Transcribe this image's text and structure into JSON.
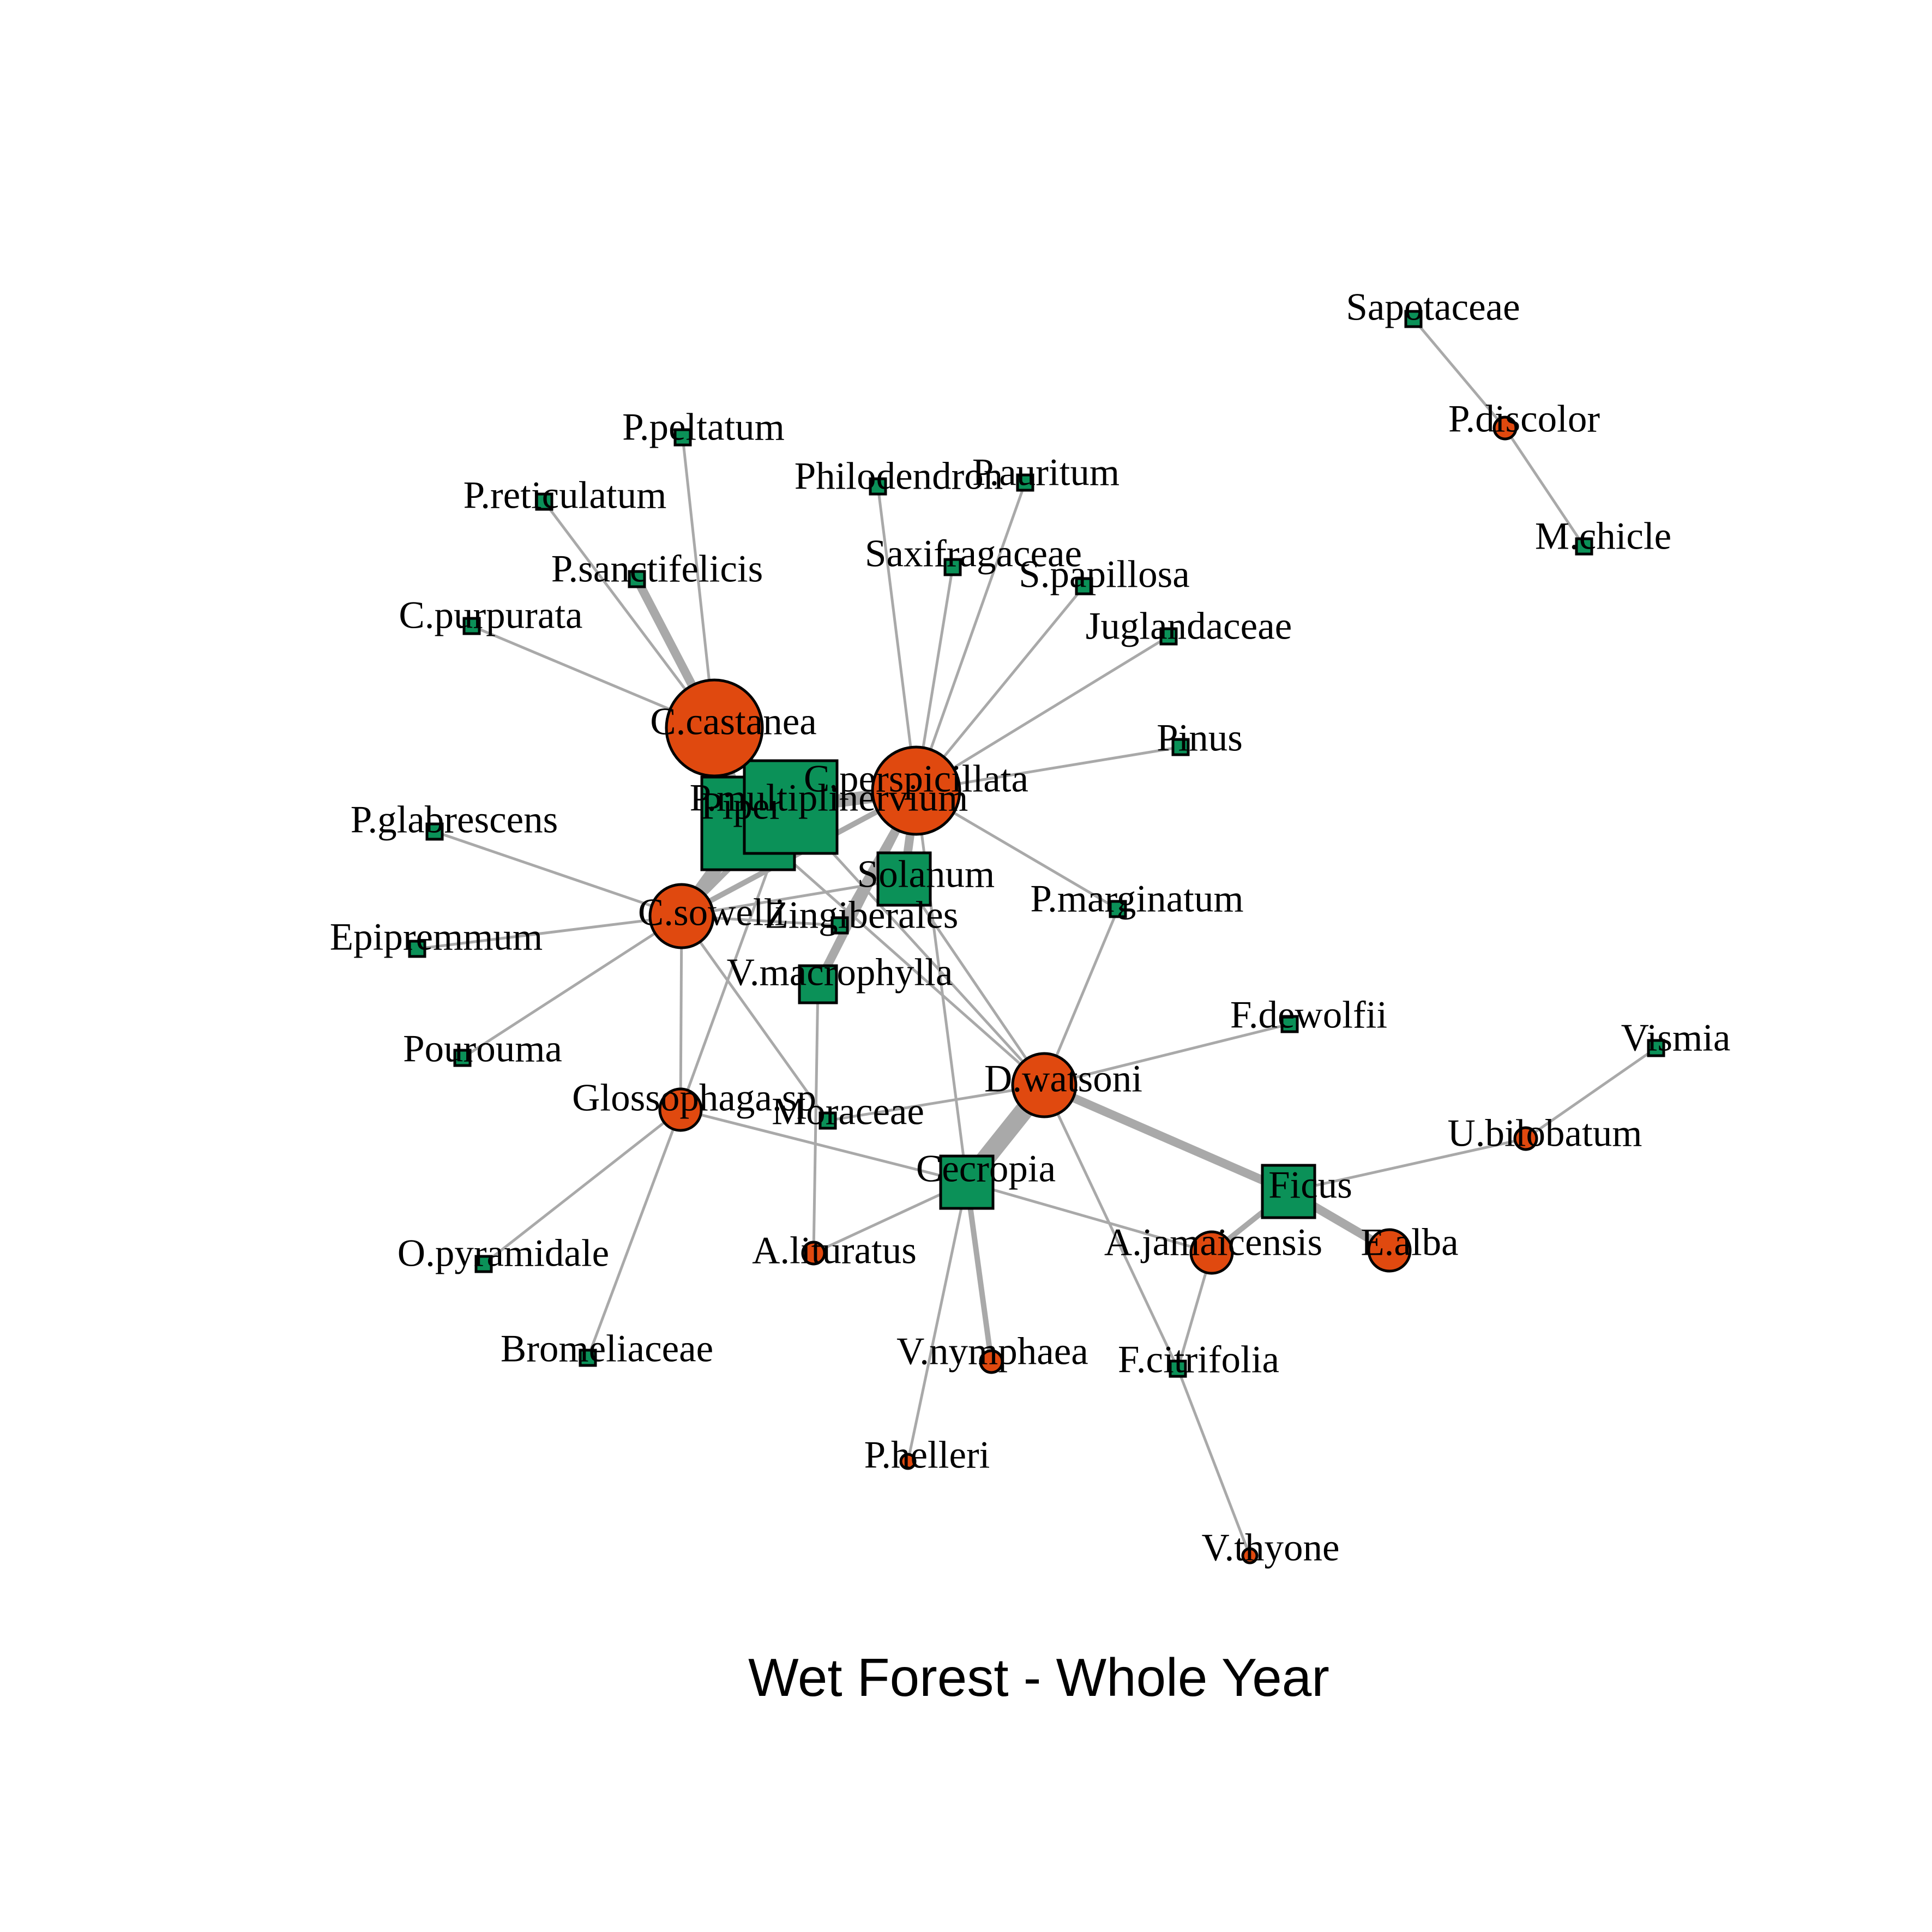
{
  "title": "Wet Forest - Whole Year",
  "colors": {
    "bat": "#e0490f",
    "plant": "#0b9158",
    "edge": "#a9a9a9",
    "outline": "#000000"
  },
  "nodes": [
    {
      "id": "C.castanea",
      "type": "bat",
      "size": "xl"
    },
    {
      "id": "C.perspicillata",
      "type": "bat",
      "size": "l"
    },
    {
      "id": "C.sowelli",
      "type": "bat",
      "size": "m"
    },
    {
      "id": "D.watsoni",
      "type": "bat",
      "size": "m"
    },
    {
      "id": "Glossophaga.sp",
      "type": "bat",
      "size": "s"
    },
    {
      "id": "A.lituratus",
      "type": "bat",
      "size": "xs"
    },
    {
      "id": "A.jamaicensis",
      "type": "bat",
      "size": "s"
    },
    {
      "id": "E.alba",
      "type": "bat",
      "size": "s"
    },
    {
      "id": "V.nymphaea",
      "type": "bat",
      "size": "xs"
    },
    {
      "id": "P.helleri",
      "type": "bat",
      "size": "xxs"
    },
    {
      "id": "V.thyone",
      "type": "bat",
      "size": "xxs"
    },
    {
      "id": "U.bilobatum",
      "type": "bat",
      "size": "xs"
    },
    {
      "id": "P.discolor",
      "type": "bat",
      "size": "xs"
    },
    {
      "id": "Piper",
      "type": "plant",
      "size": "xl"
    },
    {
      "id": "P.multiplinervium",
      "type": "plant",
      "size": "xl"
    },
    {
      "id": "Solanum",
      "type": "plant",
      "size": "m"
    },
    {
      "id": "Zingiberales",
      "type": "plant",
      "size": "xs"
    },
    {
      "id": "V.macrophylla",
      "type": "plant",
      "size": "s"
    },
    {
      "id": "Cecropia",
      "type": "plant",
      "size": "m"
    },
    {
      "id": "Ficus",
      "type": "plant",
      "size": "m"
    },
    {
      "id": "F.citrifolia",
      "type": "plant",
      "size": "xs"
    },
    {
      "id": "Moraceae",
      "type": "plant",
      "size": "xs"
    },
    {
      "id": "P.peltatum",
      "type": "plant",
      "size": "xs"
    },
    {
      "id": "P.reticulatum",
      "type": "plant",
      "size": "xs"
    },
    {
      "id": "P.sanctifelicis",
      "type": "plant",
      "size": "xs"
    },
    {
      "id": "C.purpurata",
      "type": "plant",
      "size": "xs"
    },
    {
      "id": "P.glabrescens",
      "type": "plant",
      "size": "xs"
    },
    {
      "id": "Epipremmum",
      "type": "plant",
      "size": "xs"
    },
    {
      "id": "Pourouma",
      "type": "plant",
      "size": "xs"
    },
    {
      "id": "O.pyramidale",
      "type": "plant",
      "size": "xs"
    },
    {
      "id": "Bromeliaceae",
      "type": "plant",
      "size": "xs"
    },
    {
      "id": "Philodendron",
      "type": "plant",
      "size": "xs"
    },
    {
      "id": "P.auritum",
      "type": "plant",
      "size": "xs"
    },
    {
      "id": "Saxifragaceae",
      "type": "plant",
      "size": "xs"
    },
    {
      "id": "S.papillosa",
      "type": "plant",
      "size": "xs"
    },
    {
      "id": "Juglandaceae",
      "type": "plant",
      "size": "xs"
    },
    {
      "id": "Pinus",
      "type": "plant",
      "size": "xs"
    },
    {
      "id": "P.marginatum",
      "type": "plant",
      "size": "xs"
    },
    {
      "id": "F.dewolfii",
      "type": "plant",
      "size": "xs"
    },
    {
      "id": "Vismia",
      "type": "plant",
      "size": "xs"
    },
    {
      "id": "Sapotaceae",
      "type": "plant",
      "size": "xs"
    },
    {
      "id": "M.chicle",
      "type": "plant",
      "size": "xs"
    }
  ],
  "edges": [
    {
      "source": "C.castanea",
      "target": "P.peltatum",
      "weight": 1
    },
    {
      "source": "C.castanea",
      "target": "P.reticulatum",
      "weight": 1
    },
    {
      "source": "C.castanea",
      "target": "P.sanctifelicis",
      "weight": 3
    },
    {
      "source": "C.castanea",
      "target": "C.purpurata",
      "weight": 1
    },
    {
      "source": "C.castanea",
      "target": "Piper",
      "weight": 3
    },
    {
      "source": "C.castanea",
      "target": "P.multiplinervium",
      "weight": 4
    },
    {
      "source": "C.perspicillata",
      "target": "P.multiplinervium",
      "weight": 4
    },
    {
      "source": "C.perspicillata",
      "target": "Philodendron",
      "weight": 1
    },
    {
      "source": "C.perspicillata",
      "target": "P.auritum",
      "weight": 1
    },
    {
      "source": "C.perspicillata",
      "target": "Saxifragaceae",
      "weight": 1
    },
    {
      "source": "C.perspicillata",
      "target": "S.papillosa",
      "weight": 1
    },
    {
      "source": "C.perspicillata",
      "target": "Juglandaceae",
      "weight": 1
    },
    {
      "source": "C.perspicillata",
      "target": "Pinus",
      "weight": 1
    },
    {
      "source": "C.perspicillata",
      "target": "P.marginatum",
      "weight": 1
    },
    {
      "source": "C.perspicillata",
      "target": "Solanum",
      "weight": 3
    },
    {
      "source": "C.perspicillata",
      "target": "Zingiberales",
      "weight": 2
    },
    {
      "source": "C.perspicillata",
      "target": "V.macrophylla",
      "weight": 3
    },
    {
      "source": "C.perspicillata",
      "target": "Cecropia",
      "weight": 1
    },
    {
      "source": "C.perspicillata",
      "target": "C.sowelli",
      "weight": 2
    },
    {
      "source": "C.sowelli",
      "target": "Piper",
      "weight": 4
    },
    {
      "source": "C.sowelli",
      "target": "P.multiplinervium",
      "weight": 2
    },
    {
      "source": "C.sowelli",
      "target": "P.glabrescens",
      "weight": 1
    },
    {
      "source": "C.sowelli",
      "target": "Epipremmum",
      "weight": 1
    },
    {
      "source": "C.sowelli",
      "target": "Pourouma",
      "weight": 1
    },
    {
      "source": "C.sowelli",
      "target": "Solanum",
      "weight": 1
    },
    {
      "source": "C.sowelli",
      "target": "Zingiberales",
      "weight": 1
    },
    {
      "source": "C.sowelli",
      "target": "Moraceae",
      "weight": 1
    },
    {
      "source": "C.sowelli",
      "target": "Glossophaga.sp",
      "weight": 1
    },
    {
      "source": "D.watsoni",
      "target": "Cecropia",
      "weight": 5
    },
    {
      "source": "D.watsoni",
      "target": "Ficus",
      "weight": 3
    },
    {
      "source": "D.watsoni",
      "target": "F.dewolfii",
      "weight": 1
    },
    {
      "source": "D.watsoni",
      "target": "P.marginatum",
      "weight": 1
    },
    {
      "source": "D.watsoni",
      "target": "Moraceae",
      "weight": 1
    },
    {
      "source": "D.watsoni",
      "target": "Solanum",
      "weight": 1
    },
    {
      "source": "D.watsoni",
      "target": "P.multiplinervium",
      "weight": 1
    },
    {
      "source": "D.watsoni",
      "target": "Piper",
      "weight": 1
    },
    {
      "source": "D.watsoni",
      "target": "F.citrifolia",
      "weight": 1
    },
    {
      "source": "Glossophaga.sp",
      "target": "O.pyramidale",
      "weight": 1
    },
    {
      "source": "Glossophaga.sp",
      "target": "Bromeliaceae",
      "weight": 1
    },
    {
      "source": "Glossophaga.sp",
      "target": "Cecropia",
      "weight": 1
    },
    {
      "source": "Glossophaga.sp",
      "target": "P.multiplinervium",
      "weight": 1
    },
    {
      "source": "A.lituratus",
      "target": "Cecropia",
      "weight": 1
    },
    {
      "source": "A.lituratus",
      "target": "V.macrophylla",
      "weight": 1
    },
    {
      "source": "A.jamaicensis",
      "target": "Ficus",
      "weight": 2
    },
    {
      "source": "A.jamaicensis",
      "target": "Cecropia",
      "weight": 1
    },
    {
      "source": "A.jamaicensis",
      "target": "F.citrifolia",
      "weight": 1
    },
    {
      "source": "E.alba",
      "target": "Ficus",
      "weight": 3
    },
    {
      "source": "V.nymphaea",
      "target": "Cecropia",
      "weight": 2
    },
    {
      "source": "P.helleri",
      "target": "Cecropia",
      "weight": 1
    },
    {
      "source": "V.thyone",
      "target": "F.citrifolia",
      "weight": 1
    },
    {
      "source": "U.bilobatum",
      "target": "Ficus",
      "weight": 1
    },
    {
      "source": "U.bilobatum",
      "target": "Vismia",
      "weight": 1
    },
    {
      "source": "P.discolor",
      "target": "Sapotaceae",
      "weight": 1
    },
    {
      "source": "P.discolor",
      "target": "M.chicle",
      "weight": 1
    }
  ]
}
